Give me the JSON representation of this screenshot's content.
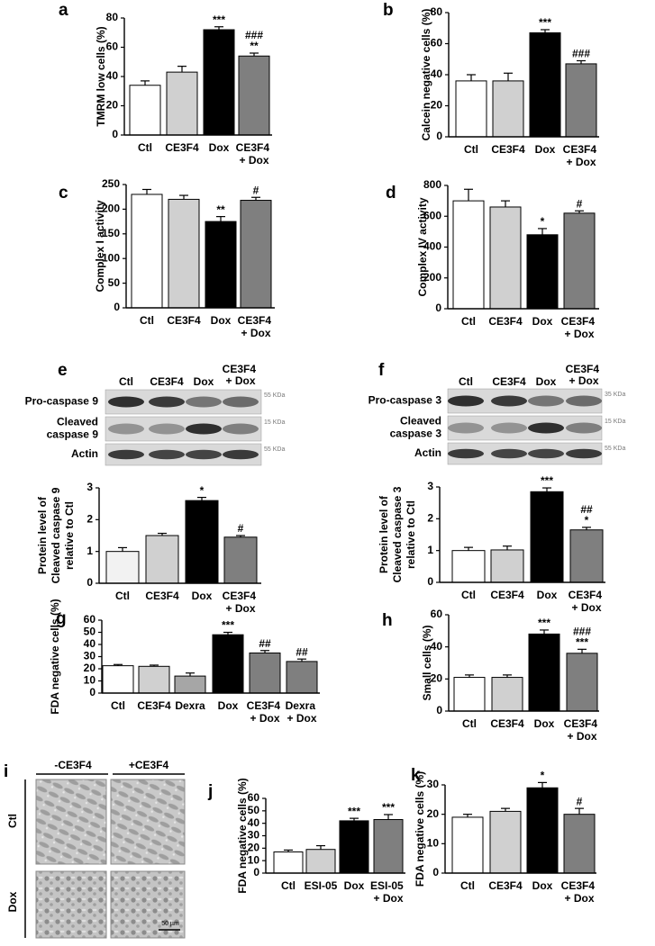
{
  "chart_data": [
    {
      "type": "bar",
      "letter": "a",
      "ylabel": [
        "TMRM low cells (%)"
      ],
      "categories": [
        "Ctl",
        "CE3F4",
        "Dox",
        "CE3F4 + Dox"
      ],
      "values": [
        34,
        43,
        72,
        54
      ],
      "errors": [
        3,
        4,
        2,
        2
      ],
      "colors": [
        "#ffffff",
        "#d0d0d0",
        "#000000",
        "#7f7f7f"
      ],
      "annotations": [
        [],
        [],
        [
          "***"
        ],
        [
          "###",
          "**"
        ]
      ],
      "ylim": [
        0,
        80
      ],
      "yticks": [
        0,
        20,
        40,
        60,
        80
      ]
    },
    {
      "type": "bar",
      "letter": "b",
      "ylabel": [
        "Calcein negative cells (%)"
      ],
      "categories": [
        "Ctl",
        "CE3F4",
        "Dox",
        "CE3F4 + Dox"
      ],
      "values": [
        36,
        36,
        67,
        47
      ],
      "errors": [
        4,
        5,
        2,
        2
      ],
      "colors": [
        "#ffffff",
        "#d0d0d0",
        "#000000",
        "#7f7f7f"
      ],
      "annotations": [
        [],
        [],
        [
          "***"
        ],
        [
          "###"
        ]
      ],
      "ylim": [
        0,
        80
      ],
      "yticks": [
        0,
        20,
        40,
        60,
        80
      ]
    },
    {
      "type": "bar",
      "letter": "c",
      "ylabel": [
        "Complex I activity"
      ],
      "categories": [
        "Ctl",
        "CE3F4",
        "Dox",
        "CE3F4 + Dox"
      ],
      "values": [
        230,
        220,
        175,
        218
      ],
      "errors": [
        10,
        8,
        10,
        6
      ],
      "colors": [
        "#ffffff",
        "#d0d0d0",
        "#000000",
        "#7f7f7f"
      ],
      "annotations": [
        [],
        [],
        [
          "**"
        ],
        [
          "#"
        ]
      ],
      "ylim": [
        0,
        250
      ],
      "yticks": [
        0,
        50,
        100,
        150,
        200,
        250
      ]
    },
    {
      "type": "bar",
      "letter": "d",
      "ylabel": [
        "Complex IV activity"
      ],
      "categories": [
        "Ctl",
        "CE3F4",
        "Dox",
        "CE3F4 + Dox"
      ],
      "values": [
        700,
        660,
        480,
        620
      ],
      "errors": [
        75,
        40,
        40,
        15
      ],
      "colors": [
        "#ffffff",
        "#d0d0d0",
        "#000000",
        "#7f7f7f"
      ],
      "annotations": [
        [],
        [],
        [
          "*"
        ],
        [
          "#"
        ]
      ],
      "ylim": [
        0,
        800
      ],
      "yticks": [
        0,
        200,
        400,
        600,
        800
      ]
    },
    {
      "type": "bar",
      "ylabel": [
        "Protein level of",
        "Cleaved caspase 9",
        "relative to Ctl"
      ],
      "categories": [
        "Ctl",
        "CE3F4",
        "Dox",
        "CE3F4 + Dox"
      ],
      "values": [
        1.0,
        1.5,
        2.6,
        1.45
      ],
      "errors": [
        0.12,
        0.07,
        0.1,
        0.05
      ],
      "colors": [
        "#f2f2f2",
        "#d0d0d0",
        "#000000",
        "#7f7f7f"
      ],
      "annotations": [
        [],
        [],
        [
          "*"
        ],
        [
          "#"
        ]
      ],
      "ylim": [
        0,
        3
      ],
      "yticks": [
        0,
        1,
        2,
        3
      ]
    },
    {
      "type": "bar",
      "ylabel": [
        "Protein level of",
        "Cleaved caspase 3",
        "relative to Ctl"
      ],
      "categories": [
        "Ctl",
        "CE3F4",
        "Dox",
        "CE3F4 + Dox"
      ],
      "values": [
        1.0,
        1.02,
        2.85,
        1.65
      ],
      "errors": [
        0.1,
        0.12,
        0.12,
        0.08
      ],
      "colors": [
        "#ffffff",
        "#d0d0d0",
        "#000000",
        "#7f7f7f"
      ],
      "annotations": [
        [],
        [],
        [
          "***"
        ],
        [
          "##",
          "*"
        ]
      ],
      "ylim": [
        0,
        3
      ],
      "yticks": [
        0,
        1,
        2,
        3
      ]
    },
    {
      "type": "bar",
      "letter": "g",
      "ylabel": [
        "FDA negative cells (%)"
      ],
      "categories": [
        "Ctl",
        "CE3F4",
        "Dexra",
        "Dox",
        "CE3F4 + Dox",
        "Dexra + Dox"
      ],
      "values": [
        22.5,
        22,
        14,
        48,
        33,
        26
      ],
      "errors": [
        1,
        1,
        2.5,
        2,
        2,
        2
      ],
      "colors": [
        "#ffffff",
        "#d0d0d0",
        "#a6a6a6",
        "#000000",
        "#7f7f7f",
        "#7f7f7f"
      ],
      "annotations": [
        [],
        [],
        [],
        [
          "***"
        ],
        [
          "##"
        ],
        [
          "##"
        ]
      ],
      "ylim": [
        0,
        60
      ],
      "yticks": [
        0,
        10,
        20,
        30,
        40,
        50,
        60
      ]
    },
    {
      "type": "bar",
      "letter": "h",
      "ylabel": [
        "Small cells (%)"
      ],
      "categories": [
        "Ctl",
        "CE3F4",
        "Dox",
        "CE3F4 + Dox"
      ],
      "values": [
        21,
        21,
        48,
        36
      ],
      "errors": [
        1.5,
        1.5,
        2.5,
        2.5
      ],
      "colors": [
        "#ffffff",
        "#d0d0d0",
        "#000000",
        "#7f7f7f"
      ],
      "annotations": [
        [],
        [],
        [
          "***"
        ],
        [
          "###",
          "***"
        ]
      ],
      "ylim": [
        0,
        60
      ],
      "yticks": [
        0,
        20,
        40,
        60
      ]
    },
    {
      "type": "bar",
      "letter": "j",
      "ylabel": [
        "FDA negative cells (%)"
      ],
      "categories": [
        "Ctl",
        "ESI-05",
        "Dox",
        "ESI-05 + Dox"
      ],
      "values": [
        17,
        19,
        42,
        43
      ],
      "errors": [
        1.5,
        3,
        2,
        4
      ],
      "colors": [
        "#ffffff",
        "#d0d0d0",
        "#000000",
        "#7f7f7f"
      ],
      "annotations": [
        [],
        [],
        [
          "***"
        ],
        [
          "***"
        ]
      ],
      "ylim": [
        0,
        60
      ],
      "yticks": [
        0,
        10,
        20,
        30,
        40,
        50,
        60
      ]
    },
    {
      "type": "bar",
      "letter": "k",
      "ylabel": [
        "FDA negative cells (%)"
      ],
      "categories": [
        "Ctl",
        "CE3F4",
        "Dox",
        "CE3F4 + Dox"
      ],
      "values": [
        19,
        21,
        29,
        20
      ],
      "errors": [
        1,
        1,
        1.8,
        2
      ],
      "colors": [
        "#ffffff",
        "#d0d0d0",
        "#000000",
        "#7f7f7f"
      ],
      "annotations": [
        [],
        [],
        [
          "*"
        ],
        [
          "#"
        ]
      ],
      "ylim": [
        0,
        30
      ],
      "yticks": [
        0,
        10,
        20,
        30
      ]
    }
  ],
  "blots": [
    {
      "letter": "e",
      "lanes": [
        "Ctl",
        "CE3F4",
        "Dox",
        "CE3F4 + Dox"
      ],
      "rows": [
        {
          "label": [
            "Pro-caspase 9"
          ],
          "marker": "55 KDa"
        },
        {
          "label": [
            "Cleaved",
            "caspase 9"
          ],
          "marker": "15 KDa"
        },
        {
          "label": [
            "Actin"
          ],
          "marker": "55 KDa"
        }
      ]
    },
    {
      "letter": "f",
      "lanes": [
        "Ctl",
        "CE3F4",
        "Dox",
        "CE3F4 + Dox"
      ],
      "rows": [
        {
          "label": [
            "Pro-caspase 3"
          ],
          "marker": "35 KDa"
        },
        {
          "label": [
            "Cleaved",
            "caspase 3"
          ],
          "marker": "15 KDa"
        },
        {
          "label": [
            "Actin"
          ],
          "marker": "55 KDa"
        }
      ]
    }
  ],
  "micrographs": {
    "letter": "i",
    "columns": [
      "-CE3F4",
      "+CE3F4"
    ],
    "rows": [
      "Ctl",
      "Dox"
    ],
    "scale_bar": "50 µm"
  }
}
